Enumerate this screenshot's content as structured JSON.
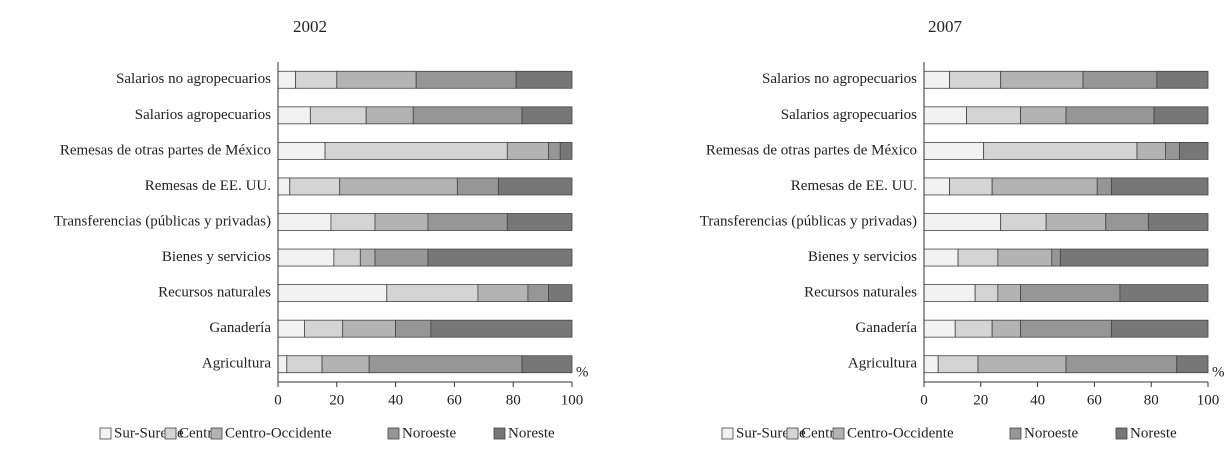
{
  "chart_data": [
    {
      "type": "bar",
      "orientation": "horizontal",
      "stacked": true,
      "title": "2002",
      "xlabel": "%",
      "categories": [
        "Salarios no agropecuarios",
        "Salarios agropecuarios",
        "Remesas de otras partes de México",
        "Remesas de EE. UU.",
        "Transferencias (públicas y privadas)",
        "Bienes y servicios",
        "Recursos naturales",
        "Ganadería",
        "Agricultura"
      ],
      "series": [
        {
          "name": "Sur-Sureste",
          "color": "#f2f2f2",
          "values": [
            6,
            11,
            16,
            4,
            18,
            19,
            37,
            9,
            3
          ]
        },
        {
          "name": "Centro",
          "color": "#d4d4d4",
          "values": [
            14,
            19,
            62,
            17,
            15,
            9,
            31,
            13,
            12
          ]
        },
        {
          "name": "Centro-Occidente",
          "color": "#b3b3b3",
          "values": [
            27,
            16,
            14,
            40,
            18,
            5,
            17,
            18,
            16
          ]
        },
        {
          "name": "Noroeste",
          "color": "#969696",
          "values": [
            34,
            37,
            4,
            14,
            27,
            18,
            7,
            12,
            52
          ]
        },
        {
          "name": "Noreste",
          "color": "#777777",
          "values": [
            19,
            17,
            4,
            25,
            22,
            49,
            8,
            48,
            17
          ]
        }
      ],
      "xlim": [
        0,
        100
      ],
      "xticks": [
        0,
        20,
        40,
        60,
        80,
        100
      ]
    },
    {
      "type": "bar",
      "orientation": "horizontal",
      "stacked": true,
      "title": "2007",
      "xlabel": "%",
      "categories": [
        "Salarios no agropecuarios",
        "Salarios agropecuarios",
        "Remesas de otras partes de México",
        "Remesas de EE. UU.",
        "Transferencias (públicas y privadas)",
        "Bienes y servicios",
        "Recursos naturales",
        "Ganadería",
        "Agricultura"
      ],
      "series": [
        {
          "name": "Sur-Sureste",
          "color": "#f2f2f2",
          "values": [
            9,
            15,
            21,
            9,
            27,
            12,
            18,
            11,
            5
          ]
        },
        {
          "name": "Centro",
          "color": "#d4d4d4",
          "values": [
            18,
            19,
            54,
            15,
            16,
            14,
            8,
            13,
            14
          ]
        },
        {
          "name": "Centro-Occidente",
          "color": "#b3b3b3",
          "values": [
            29,
            16,
            10,
            37,
            21,
            19,
            8,
            10,
            31
          ]
        },
        {
          "name": "Noroeste",
          "color": "#969696",
          "values": [
            26,
            31,
            5,
            5,
            15,
            3,
            35,
            32,
            39
          ]
        },
        {
          "name": "Noreste",
          "color": "#777777",
          "values": [
            18,
            19,
            10,
            34,
            21,
            52,
            31,
            34,
            11
          ]
        }
      ],
      "xlim": [
        0,
        100
      ],
      "xticks": [
        0,
        20,
        40,
        60,
        80,
        100
      ]
    }
  ]
}
